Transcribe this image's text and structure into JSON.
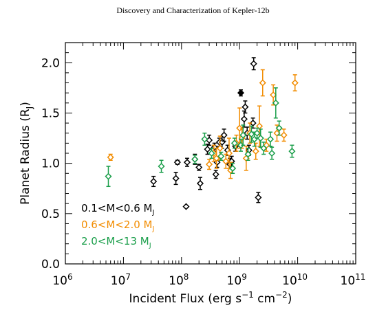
{
  "header": {
    "title": "Discovery and Characterization of Kepler-12b"
  },
  "chart_data": {
    "type": "scatter",
    "xlabel": "Incident Flux (erg s⁻¹ cm⁻²)",
    "ylabel": "Planet Radius (R_J)",
    "xscale": "log",
    "xlim": [
      1000000.0,
      100000000000.0
    ],
    "ylim": [
      0.0,
      2.2
    ],
    "x_ticks": [
      {
        "value": 1000000.0,
        "base": "10",
        "exp": "6"
      },
      {
        "value": 10000000.0,
        "base": "10",
        "exp": "7"
      },
      {
        "value": 100000000.0,
        "base": "10",
        "exp": "8"
      },
      {
        "value": 1000000000.0,
        "base": "10",
        "exp": "9"
      },
      {
        "value": 10000000000.0,
        "base": "10",
        "exp": "10"
      },
      {
        "value": 100000000000.0,
        "base": "10",
        "exp": "11"
      }
    ],
    "y_ticks": [
      {
        "value": 0.0,
        "label": "0.0"
      },
      {
        "value": 0.5,
        "label": "0.5"
      },
      {
        "value": 1.0,
        "label": "1.0"
      },
      {
        "value": 1.5,
        "label": "1.5"
      },
      {
        "value": 2.0,
        "label": "2.0"
      }
    ],
    "grid": false,
    "legend_position": "lower-left",
    "series": [
      {
        "name": "0.1<M<0.6 M_J",
        "color": "#000000",
        "marker": "diamond",
        "points": [
          {
            "x": 33000000.0,
            "y": 0.82,
            "err": 0.05
          },
          {
            "x": 80000000.0,
            "y": 0.85,
            "err": 0.06
          },
          {
            "x": 85000000.0,
            "y": 1.01,
            "err": 0.02
          },
          {
            "x": 120000000.0,
            "y": 0.57,
            "err": 0.01
          },
          {
            "x": 125000000.0,
            "y": 1.01,
            "err": 0.04
          },
          {
            "x": 170000000.0,
            "y": 1.04,
            "err": 0.05
          },
          {
            "x": 200000000.0,
            "y": 0.96,
            "err": 0.03
          },
          {
            "x": 210000000.0,
            "y": 0.8,
            "err": 0.06
          },
          {
            "x": 280000000.0,
            "y": 1.14,
            "err": 0.05
          },
          {
            "x": 300000000.0,
            "y": 1.23,
            "err": 0.05
          },
          {
            "x": 370000000.0,
            "y": 1.16,
            "err": 0.04
          },
          {
            "x": 390000000.0,
            "y": 0.89,
            "err": 0.04
          },
          {
            "x": 410000000.0,
            "y": 1.01,
            "err": 0.05
          },
          {
            "x": 450000000.0,
            "y": 1.21,
            "err": 0.04
          },
          {
            "x": 500000000.0,
            "y": 1.21,
            "err": 0.06
          },
          {
            "x": 540000000.0,
            "y": 1.28,
            "err": 0.06
          },
          {
            "x": 620000000.0,
            "y": 1.13,
            "err": 0.05
          },
          {
            "x": 680000000.0,
            "y": 0.99,
            "err": 0.06
          },
          {
            "x": 730000000.0,
            "y": 1.02,
            "err": 0.05
          },
          {
            "x": 850000000.0,
            "y": 1.17,
            "err": 0.05
          },
          {
            "x": 1050000000.0,
            "y": 1.7,
            "err": 0.03,
            "filled": true
          },
          {
            "x": 1200000000.0,
            "y": 1.44,
            "err": 0.08
          },
          {
            "x": 1250000000.0,
            "y": 1.56,
            "err": 0.06
          },
          {
            "x": 1350000000.0,
            "y": 1.3,
            "err": 0.06
          },
          {
            "x": 1450000000.0,
            "y": 1.13,
            "err": 0.05
          },
          {
            "x": 1700000000.0,
            "y": 1.4,
            "err": 0.05
          },
          {
            "x": 1750000000.0,
            "y": 1.99,
            "err": 0.06
          },
          {
            "x": 2100000000.0,
            "y": 0.66,
            "err": 0.05
          }
        ]
      },
      {
        "name": "0.6<M<2.0 M_J",
        "color": "#f28c00",
        "marker": "diamond",
        "points": [
          {
            "x": 6000000.0,
            "y": 1.06,
            "err": 0.03
          },
          {
            "x": 300000000.0,
            "y": 0.99,
            "err": 0.05
          },
          {
            "x": 360000000.0,
            "y": 1.1,
            "err": 0.08
          },
          {
            "x": 400000000.0,
            "y": 1.05,
            "err": 0.1
          },
          {
            "x": 460000000.0,
            "y": 1.15,
            "err": 0.12
          },
          {
            "x": 580000000.0,
            "y": 1.02,
            "err": 0.07
          },
          {
            "x": 660000000.0,
            "y": 1.1,
            "err": 0.15
          },
          {
            "x": 700000000.0,
            "y": 0.93,
            "err": 0.08
          },
          {
            "x": 880000000.0,
            "y": 1.2,
            "err": 0.08
          },
          {
            "x": 1000000000.0,
            "y": 1.35,
            "err": 0.2
          },
          {
            "x": 1100000000.0,
            "y": 1.25,
            "err": 0.1
          },
          {
            "x": 1300000000.0,
            "y": 1.05,
            "err": 0.12
          },
          {
            "x": 1500000000.0,
            "y": 1.3,
            "err": 0.1
          },
          {
            "x": 1900000000.0,
            "y": 1.12,
            "err": 0.08
          },
          {
            "x": 2200000000.0,
            "y": 1.37,
            "err": 0.2
          },
          {
            "x": 2500000000.0,
            "y": 1.8,
            "err": 0.13
          },
          {
            "x": 2900000000.0,
            "y": 1.18,
            "err": 0.06
          },
          {
            "x": 3800000000.0,
            "y": 1.68,
            "err": 0.1
          },
          {
            "x": 4400000000.0,
            "y": 1.3,
            "err": 0.08
          },
          {
            "x": 5800000000.0,
            "y": 1.28,
            "err": 0.06
          },
          {
            "x": 9000000000.0,
            "y": 1.8,
            "err": 0.08
          }
        ]
      },
      {
        "name": "2.0<M<13 M_J",
        "color": "#1a9e4a",
        "marker": "diamond",
        "points": [
          {
            "x": 5500000.0,
            "y": 0.87,
            "err": 0.1
          },
          {
            "x": 45000000.0,
            "y": 0.97,
            "err": 0.06
          },
          {
            "x": 170000000.0,
            "y": 1.04,
            "err": 0.04
          },
          {
            "x": 250000000.0,
            "y": 1.24,
            "err": 0.06
          },
          {
            "x": 330000000.0,
            "y": 1.1,
            "err": 0.05
          },
          {
            "x": 480000000.0,
            "y": 1.07,
            "err": 0.04
          },
          {
            "x": 760000000.0,
            "y": 0.95,
            "err": 0.05
          },
          {
            "x": 820000000.0,
            "y": 1.2,
            "err": 0.05
          },
          {
            "x": 1050000000.0,
            "y": 1.18,
            "err": 0.06
          },
          {
            "x": 1150000000.0,
            "y": 1.28,
            "err": 0.1
          },
          {
            "x": 1400000000.0,
            "y": 1.09,
            "err": 0.06
          },
          {
            "x": 1600000000.0,
            "y": 1.29,
            "err": 0.08
          },
          {
            "x": 1800000000.0,
            "y": 1.24,
            "err": 0.07
          },
          {
            "x": 2000000000.0,
            "y": 1.3,
            "err": 0.05
          },
          {
            "x": 2300000000.0,
            "y": 1.25,
            "err": 0.09
          },
          {
            "x": 2600000000.0,
            "y": 1.15,
            "err": 0.06
          },
          {
            "x": 3400000000.0,
            "y": 1.24,
            "err": 0.07
          },
          {
            "x": 3600000000.0,
            "y": 1.1,
            "err": 0.06
          },
          {
            "x": 4200000000.0,
            "y": 1.6,
            "err": 0.15
          },
          {
            "x": 4800000000.0,
            "y": 1.35,
            "err": 0.07
          },
          {
            "x": 8000000000.0,
            "y": 1.12,
            "err": 0.06
          }
        ]
      }
    ]
  }
}
